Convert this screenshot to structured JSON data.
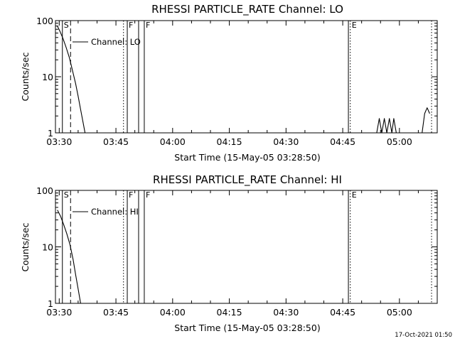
{
  "colors": {
    "background": "#ffffff",
    "foreground": "#000000"
  },
  "footer": {
    "timestamp": "17-Oct-2021 01:50"
  },
  "chart_data": [
    {
      "type": "line",
      "title": "RHESSI PARTICLE_RATE Channel: LO",
      "xlabel": "Start Time (15-May-05 03:28:50)",
      "ylabel": "Counts/sec",
      "y_scale": "log",
      "xlim": [
        "03:29",
        "05:10"
      ],
      "ylim": [
        1,
        100
      ],
      "x_ticks": [
        "03:30",
        "03:45",
        "04:00",
        "04:15",
        "04:30",
        "04:45",
        "05:00"
      ],
      "y_ticks": [
        {
          "value": 1,
          "label": "1"
        },
        {
          "value": 10,
          "label": "10"
        },
        {
          "value": 100,
          "label": "100"
        }
      ],
      "legend": {
        "entries": [
          "Channel: LO"
        ],
        "position": "top-left"
      },
      "markers": [
        {
          "time": "03:30:50",
          "label": "S",
          "style": "solid"
        },
        {
          "time": "03:33:00",
          "label": "",
          "style": "dashed"
        },
        {
          "time": "03:47:00",
          "label": "",
          "style": "dotted"
        },
        {
          "time": "03:48:00",
          "label": "F",
          "style": "solid"
        },
        {
          "time": "03:51:00",
          "label": "",
          "style": "solid"
        },
        {
          "time": "03:52:30",
          "label": "F",
          "style": "solid"
        },
        {
          "time": "04:46:30",
          "label": "",
          "style": "solid"
        },
        {
          "time": "04:47:00",
          "label": "E",
          "style": "dotted"
        },
        {
          "time": "05:08:30",
          "label": "",
          "style": "dotted"
        }
      ],
      "series": [
        {
          "name": "Channel: LO",
          "segments": [
            [
              [
                "03:29:30",
                80
              ],
              [
                "03:30:10",
                65
              ],
              [
                "03:31:00",
                48
              ],
              [
                "03:31:50",
                33
              ],
              [
                "03:32:40",
                22
              ],
              [
                "03:33:30",
                13
              ],
              [
                "03:34:20",
                7.5
              ],
              [
                "03:35:00",
                4.5
              ],
              [
                "03:35:40",
                2.6
              ],
              [
                "03:36:20",
                1.5
              ],
              [
                "03:36:50",
                1
              ]
            ],
            [
              [
                "04:54:00",
                1
              ],
              [
                "04:54:40",
                1.8
              ],
              [
                "04:55:20",
                1
              ],
              [
                "04:56:00",
                1.8
              ],
              [
                "04:56:40",
                1
              ],
              [
                "04:57:20",
                1.8
              ],
              [
                "04:58:00",
                1
              ],
              [
                "04:58:30",
                1.8
              ],
              [
                "04:59:10",
                1
              ]
            ],
            [
              [
                "05:06:00",
                1
              ],
              [
                "05:06:40",
                2.2
              ],
              [
                "05:07:20",
                2.8
              ],
              [
                "05:08:00",
                2.2
              ]
            ]
          ]
        }
      ]
    },
    {
      "type": "line",
      "title": "RHESSI PARTICLE_RATE Channel: HI",
      "xlabel": "Start Time (15-May-05 03:28:50)",
      "ylabel": "Counts/sec",
      "y_scale": "log",
      "xlim": [
        "03:29",
        "05:10"
      ],
      "ylim": [
        1,
        100
      ],
      "x_ticks": [
        "03:30",
        "03:45",
        "04:00",
        "04:15",
        "04:30",
        "04:45",
        "05:00"
      ],
      "y_ticks": [
        {
          "value": 1,
          "label": "1"
        },
        {
          "value": 10,
          "label": "10"
        },
        {
          "value": 100,
          "label": "100"
        }
      ],
      "legend": {
        "entries": [
          "Channel: HI"
        ],
        "position": "top-left"
      },
      "markers": [
        {
          "time": "03:30:50",
          "label": "S",
          "style": "solid"
        },
        {
          "time": "03:33:00",
          "label": "",
          "style": "dashed"
        },
        {
          "time": "03:47:00",
          "label": "",
          "style": "dotted"
        },
        {
          "time": "03:48:00",
          "label": "F",
          "style": "solid"
        },
        {
          "time": "03:51:00",
          "label": "",
          "style": "solid"
        },
        {
          "time": "03:52:30",
          "label": "F",
          "style": "solid"
        },
        {
          "time": "04:46:30",
          "label": "",
          "style": "solid"
        },
        {
          "time": "04:47:00",
          "label": "E",
          "style": "dotted"
        },
        {
          "time": "05:08:30",
          "label": "",
          "style": "dotted"
        }
      ],
      "series": [
        {
          "name": "Channel: HI",
          "segments": [
            [
              [
                "03:29:30",
                45
              ],
              [
                "03:30:20",
                35
              ],
              [
                "03:31:10",
                25
              ],
              [
                "03:32:00",
                17
              ],
              [
                "03:32:50",
                11
              ],
              [
                "03:33:40",
                6
              ],
              [
                "03:34:20",
                3.2
              ],
              [
                "03:35:00",
                1.8
              ],
              [
                "03:35:40",
                1
              ]
            ]
          ]
        }
      ]
    }
  ]
}
